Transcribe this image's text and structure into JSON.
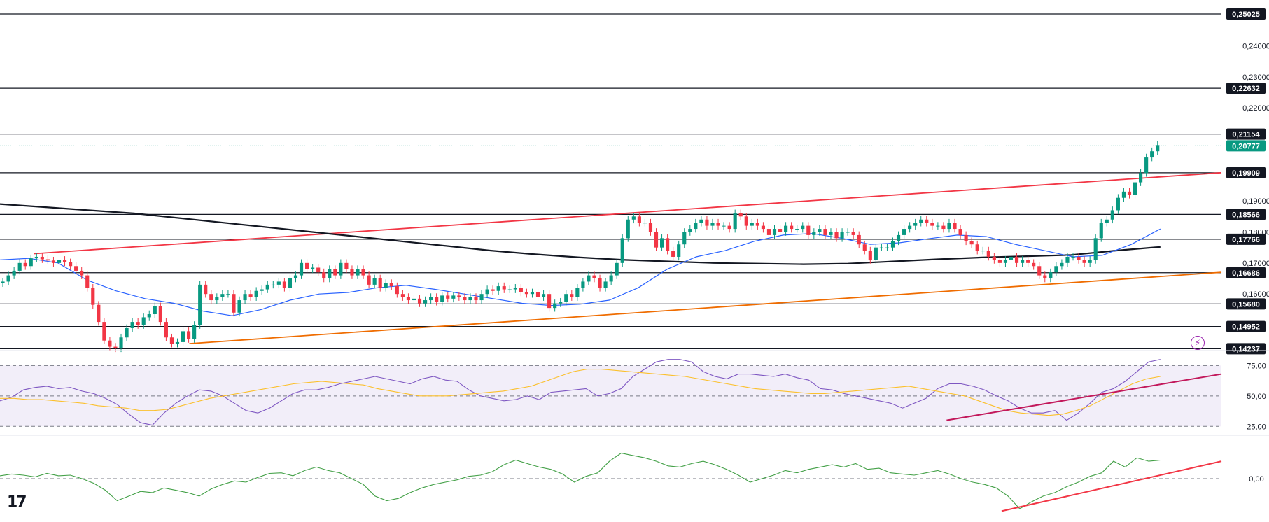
{
  "chart_data": [
    {
      "type": "candlestick",
      "ylim": [
        0.142,
        0.2525
      ],
      "price_axis_labels": [
        "0,24000",
        "0,23000",
        "0,22000",
        "0,19000",
        "0,18000",
        "0,17000",
        "0,16000"
      ],
      "levels": [
        {
          "value": 0.25025,
          "label": "0,25025"
        },
        {
          "value": 0.22632,
          "label": "0,22632"
        },
        {
          "value": 0.21154,
          "label": "0,21154"
        },
        {
          "value": 0.19909,
          "label": "0,19909"
        },
        {
          "value": 0.18566,
          "label": "0,18566"
        },
        {
          "value": 0.17766,
          "label": "0,17766"
        },
        {
          "value": 0.16686,
          "label": "0,16686"
        },
        {
          "value": 0.1568,
          "label": "0,15680"
        },
        {
          "value": 0.14952,
          "label": "0,14952"
        },
        {
          "value": 0.14237,
          "label": "0,14237"
        }
      ],
      "current_price": {
        "value": 0.20777,
        "label": "0,20777"
      },
      "close": [
        0.164,
        0.166,
        0.1675,
        0.17,
        0.169,
        0.1715,
        0.172,
        0.1712,
        0.1708,
        0.17,
        0.171,
        0.1702,
        0.169,
        0.1675,
        0.166,
        0.162,
        0.1565,
        0.151,
        0.145,
        0.143,
        0.1425,
        0.146,
        0.149,
        0.151,
        0.15,
        0.1525,
        0.1535,
        0.156,
        0.151,
        0.146,
        0.144,
        0.1445,
        0.148,
        0.1455,
        0.15,
        0.163,
        0.16,
        0.158,
        0.159,
        0.16,
        0.16,
        0.154,
        0.158,
        0.16,
        0.159,
        0.161,
        0.1615,
        0.163,
        0.163,
        0.164,
        0.162,
        0.165,
        0.166,
        0.17,
        0.168,
        0.1685,
        0.167,
        0.165,
        0.168,
        0.166,
        0.17,
        0.168,
        0.166,
        0.168,
        0.166,
        0.163,
        0.165,
        0.162,
        0.1635,
        0.1625,
        0.16,
        0.159,
        0.158,
        0.1585,
        0.157,
        0.158,
        0.159,
        0.1575,
        0.1595,
        0.1585,
        0.1595,
        0.159,
        0.158,
        0.159,
        0.158,
        0.16,
        0.1615,
        0.161,
        0.1625,
        0.1615,
        0.1615,
        0.162,
        0.1605,
        0.16,
        0.1605,
        0.159,
        0.16,
        0.1555,
        0.157,
        0.1575,
        0.16,
        0.159,
        0.162,
        0.164,
        0.166,
        0.165,
        0.162,
        0.164,
        0.166,
        0.17,
        0.178,
        0.184,
        0.185,
        0.183,
        0.183,
        0.18,
        0.175,
        0.178,
        0.174,
        0.172,
        0.176,
        0.18,
        0.181,
        0.183,
        0.184,
        0.182,
        0.183,
        0.182,
        0.182,
        0.181,
        0.186,
        0.185,
        0.182,
        0.183,
        0.182,
        0.181,
        0.179,
        0.181,
        0.18,
        0.182,
        0.181,
        0.181,
        0.182,
        0.179,
        0.18,
        0.181,
        0.179,
        0.18,
        0.178,
        0.18,
        0.18,
        0.179,
        0.176,
        0.174,
        0.171,
        0.175,
        0.175,
        0.175,
        0.177,
        0.179,
        0.181,
        0.182,
        0.183,
        0.184,
        0.183,
        0.182,
        0.182,
        0.181,
        0.183,
        0.181,
        0.179,
        0.177,
        0.176,
        0.174,
        0.174,
        0.172,
        0.171,
        0.17,
        0.171,
        0.172,
        0.17,
        0.171,
        0.17,
        0.169,
        0.166,
        0.165,
        0.167,
        0.169,
        0.17,
        0.172,
        0.172,
        0.171,
        0.17,
        0.171,
        0.178,
        0.183,
        0.184,
        0.187,
        0.191,
        0.193,
        0.192,
        0.196,
        0.199,
        0.204,
        0.206,
        0.208
      ],
      "moving_averages": [
        {
          "color": "#131722",
          "values": [
            0.189,
            0.188,
            0.187,
            0.186,
            0.1845,
            0.183,
            0.1815,
            0.18,
            0.1785,
            0.177,
            0.1755,
            0.174,
            0.1728,
            0.1718,
            0.171,
            0.1705,
            0.17,
            0.1698,
            0.1696,
            0.1698,
            0.1705,
            0.1712,
            0.1718,
            0.1722,
            0.1726,
            0.174,
            0.1752
          ]
        },
        {
          "color": "#2962ff",
          "values": [
            0.171,
            0.1715,
            0.17,
            0.1645,
            0.161,
            0.1585,
            0.157,
            0.1545,
            0.153,
            0.155,
            0.158,
            0.16,
            0.1605,
            0.162,
            0.1628,
            0.1615,
            0.16,
            0.1585,
            0.157,
            0.1563,
            0.1567,
            0.158,
            0.162,
            0.168,
            0.172,
            0.174,
            0.177,
            0.179,
            0.1795,
            0.178,
            0.176,
            0.1765,
            0.1778,
            0.179,
            0.1785,
            0.176,
            0.174,
            0.172,
            0.1725,
            0.176,
            0.181
          ]
        }
      ],
      "trendlines": [
        {
          "color": "#f23645",
          "from": [
            0.173,
            0.1705
          ],
          "to": [
            0.1991,
            0.201
          ]
        },
        {
          "color": "#ef6c00",
          "from": [
            0.144,
            0.1445
          ],
          "to": [
            0.167,
            0.169
          ]
        }
      ]
    },
    {
      "type": "line",
      "panel": "rsi",
      "ylim": [
        20,
        85
      ],
      "yticks": [
        {
          "value": 75,
          "label": "75,00"
        },
        {
          "value": 50,
          "label": "50,00"
        },
        {
          "value": 25,
          "label": "25,00"
        }
      ],
      "series": [
        {
          "color": "#7e57c2",
          "values": [
            46,
            49,
            55,
            57,
            58,
            56,
            57,
            54,
            52,
            48,
            43,
            35,
            28,
            26,
            36,
            44,
            50,
            55,
            54,
            50,
            44,
            38,
            36,
            40,
            46,
            52,
            55,
            55,
            57,
            60,
            62,
            64,
            66,
            64,
            62,
            60,
            64,
            66,
            63,
            62,
            55,
            50,
            48,
            46,
            47,
            50,
            47,
            53,
            54,
            55,
            56,
            50,
            52,
            56,
            66,
            72,
            78,
            80,
            80,
            78,
            70,
            66,
            64,
            68,
            68,
            67,
            66,
            68,
            65,
            63,
            56,
            55,
            52,
            50,
            48,
            46,
            44,
            40,
            44,
            48,
            56,
            60,
            60,
            58,
            55,
            50,
            46,
            40,
            36,
            36,
            38,
            30,
            36,
            44,
            53,
            56,
            62,
            70,
            78,
            80
          ]
        },
        {
          "color": "#fbc02d",
          "values": [
            48,
            48,
            47,
            47,
            46,
            45,
            44,
            42,
            41,
            40,
            38,
            38,
            39,
            42,
            45,
            48,
            50,
            52,
            54,
            56,
            58,
            60,
            61,
            62,
            61,
            60,
            59,
            56,
            54,
            52,
            50,
            50,
            50,
            51,
            52,
            53,
            54,
            56,
            58,
            62,
            66,
            70,
            72,
            72,
            71,
            70,
            69,
            68,
            67,
            66,
            64,
            62,
            60,
            58,
            56,
            55,
            54,
            53,
            52,
            52,
            53,
            54,
            55,
            56,
            57,
            58,
            56,
            54,
            52,
            50,
            46,
            42,
            38,
            36,
            35,
            34,
            35,
            38,
            42,
            48,
            54,
            60,
            64,
            66
          ]
        }
      ],
      "trendlines": [
        {
          "color": "#c2185b",
          "from": 30,
          "to": 68
        }
      ]
    },
    {
      "type": "line",
      "panel": "oscillator",
      "ylim": [
        -0.7,
        0.7
      ],
      "yticks": [
        {
          "value": 0,
          "label": "0,00"
        }
      ],
      "series": [
        {
          "color": "#43a047",
          "values": [
            0.05,
            0.08,
            0.06,
            0.03,
            0.09,
            0.05,
            0.06,
            0.0,
            -0.08,
            -0.2,
            -0.38,
            -0.3,
            -0.22,
            -0.24,
            -0.16,
            -0.2,
            -0.24,
            -0.3,
            -0.18,
            -0.1,
            -0.04,
            -0.06,
            0.02,
            0.09,
            0.1,
            0.05,
            0.14,
            0.2,
            0.14,
            0.1,
            0.0,
            -0.1,
            -0.3,
            -0.38,
            -0.34,
            -0.24,
            -0.16,
            -0.1,
            -0.06,
            -0.02,
            0.04,
            0.06,
            0.12,
            0.24,
            0.32,
            0.26,
            0.2,
            0.16,
            0.08,
            -0.06,
            0.04,
            0.1,
            0.3,
            0.44,
            0.4,
            0.36,
            0.3,
            0.22,
            0.2,
            0.26,
            0.3,
            0.24,
            0.16,
            0.06,
            -0.06,
            0.0,
            0.06,
            0.14,
            0.1,
            0.16,
            0.2,
            0.24,
            0.2,
            0.26,
            0.16,
            0.18,
            0.1,
            0.08,
            0.06,
            0.1,
            0.14,
            0.08,
            0.0,
            -0.06,
            -0.1,
            -0.16,
            -0.3,
            -0.52,
            -0.4,
            -0.3,
            -0.24,
            -0.14,
            -0.06,
            0.04,
            0.1,
            0.3,
            0.2,
            0.36,
            0.3,
            0.32
          ]
        }
      ],
      "trendlines": [
        {
          "color": "#f23645",
          "from": -0.56,
          "to": 0.3
        }
      ]
    }
  ]
}
